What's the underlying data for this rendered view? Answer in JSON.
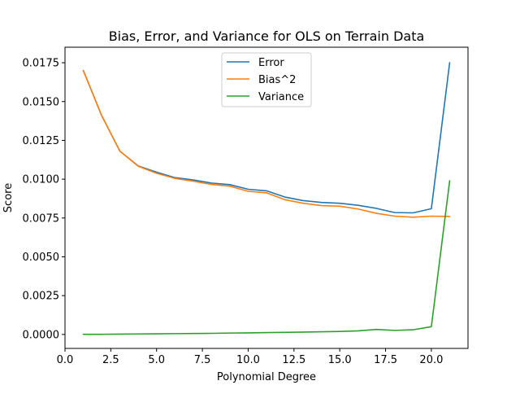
{
  "chart_data": {
    "type": "line",
    "title": "Bias, Error, and Variance for OLS on Terrain Data",
    "xlabel": "Polynomial Degree",
    "ylabel": "Score",
    "xlim": [
      0.0,
      22.0
    ],
    "ylim": [
      -0.0009,
      0.0185
    ],
    "xticks": [
      0.0,
      2.5,
      5.0,
      7.5,
      10.0,
      12.5,
      15.0,
      17.5,
      20.0
    ],
    "xtick_labels": [
      "0.0",
      "2.5",
      "5.0",
      "7.5",
      "10.0",
      "12.5",
      "15.0",
      "17.5",
      "20.0"
    ],
    "yticks": [
      0.0,
      0.0025,
      0.005,
      0.0075,
      0.01,
      0.0125,
      0.015,
      0.0175
    ],
    "ytick_labels": [
      "0.0000",
      "0.0025",
      "0.0050",
      "0.0075",
      "0.0100",
      "0.0125",
      "0.0150",
      "0.0175"
    ],
    "grid": false,
    "legend_position": "top-center",
    "x": [
      1,
      2,
      3,
      4,
      5,
      6,
      7,
      8,
      9,
      10,
      11,
      12,
      13,
      14,
      15,
      16,
      17,
      18,
      19,
      20,
      21
    ],
    "series": [
      {
        "name": "Error",
        "color": "#1f77b4",
        "values": [
          0.017,
          0.0141,
          0.0118,
          0.01085,
          0.01045,
          0.0101,
          0.00995,
          0.00975,
          0.00965,
          0.00935,
          0.00925,
          0.00885,
          0.00862,
          0.0085,
          0.00845,
          0.00832,
          0.00812,
          0.00785,
          0.00783,
          0.0081,
          0.0175
        ]
      },
      {
        "name": "Bias^2",
        "color": "#ff7f0e",
        "values": [
          0.017,
          0.0141,
          0.0118,
          0.01083,
          0.01038,
          0.01005,
          0.00987,
          0.00966,
          0.00955,
          0.00922,
          0.00912,
          0.00868,
          0.00845,
          0.0083,
          0.00826,
          0.00808,
          0.0078,
          0.00762,
          0.00755,
          0.00762,
          0.0076
        ]
      },
      {
        "name": "Variance",
        "color": "#2ca02c",
        "values": [
          1e-05,
          1e-05,
          2e-05,
          3e-05,
          4e-05,
          5e-05,
          6e-05,
          7e-05,
          9e-05,
          0.0001,
          0.00012,
          0.00013,
          0.00015,
          0.00017,
          0.00019,
          0.00023,
          0.00032,
          0.00026,
          0.0003,
          0.0005,
          0.0099
        ]
      }
    ]
  }
}
